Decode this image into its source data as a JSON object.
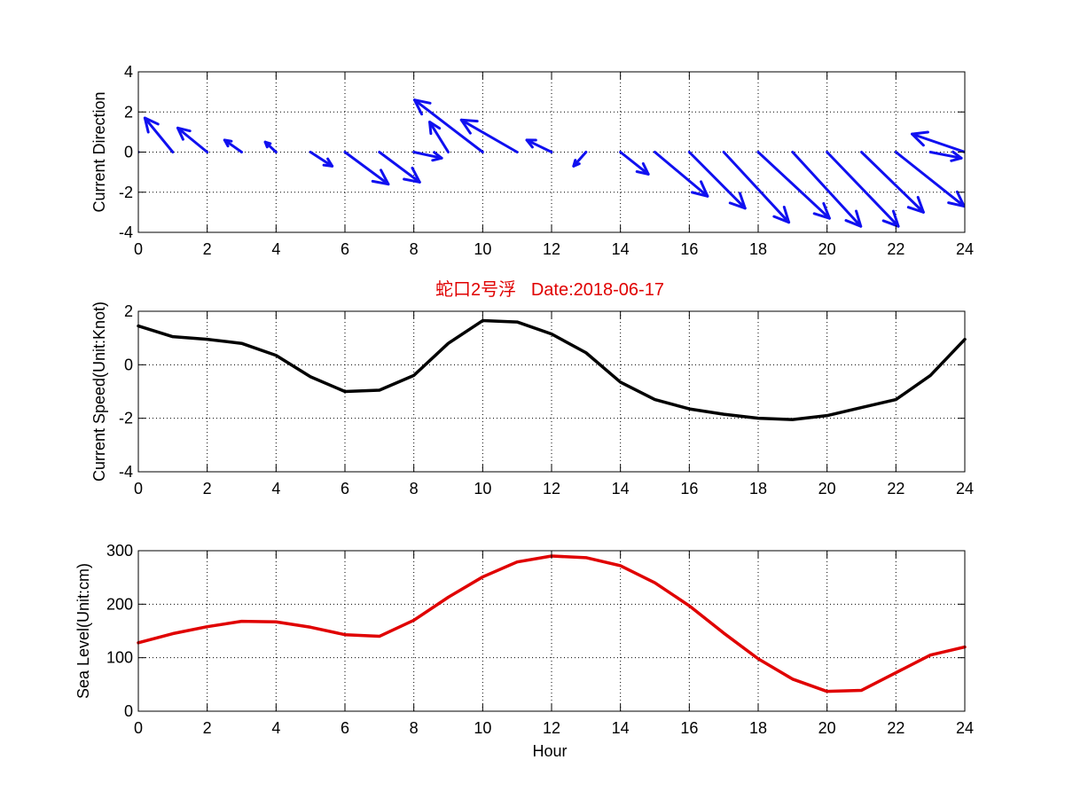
{
  "title": "蛇口2号浮   Date:2018-06-17",
  "colors": {
    "direction": "#1010f0",
    "speed": "#000000",
    "sea_level": "#e00000",
    "title": "#e00000",
    "grid": "#000000"
  },
  "chart_data": [
    {
      "type": "quiver",
      "ylabel": "Current Direction",
      "xlim": [
        0,
        24
      ],
      "ylim": [
        -4,
        4
      ],
      "xticks": [
        0,
        2,
        4,
        6,
        8,
        10,
        12,
        14,
        16,
        18,
        20,
        22,
        24
      ],
      "yticks": [
        -4,
        -2,
        0,
        2,
        4
      ],
      "grid": true,
      "x": [
        0,
        1,
        2,
        3,
        4,
        5,
        6,
        7,
        8,
        9,
        10,
        11,
        12,
        13,
        14,
        15,
        16,
        17,
        18,
        19,
        20,
        21,
        22,
        23,
        24
      ],
      "u": [
        -1.0,
        -0.9,
        -0.95,
        -0.55,
        -0.35,
        0.7,
        1.4,
        1.3,
        0.9,
        -0.6,
        -2.2,
        -1.8,
        -0.8,
        -0.4,
        0.9,
        1.7,
        1.8,
        2.1,
        2.3,
        2.2,
        2.3,
        2.0,
        2.2,
        1.0,
        -1.7
      ],
      "v": [
        0.8,
        1.7,
        1.2,
        0.6,
        0.5,
        -0.7,
        -1.6,
        -1.5,
        -0.3,
        1.5,
        2.6,
        1.6,
        0.6,
        -0.7,
        -1.1,
        -2.2,
        -2.8,
        -3.5,
        -3.3,
        -3.7,
        -3.7,
        -3.0,
        -2.7,
        -0.3,
        0.9
      ]
    },
    {
      "type": "line",
      "ylabel": "Current Speed(Unit:Knot)",
      "xlim": [
        0,
        24
      ],
      "ylim": [
        -4,
        2
      ],
      "xticks": [
        0,
        2,
        4,
        6,
        8,
        10,
        12,
        14,
        16,
        18,
        20,
        22,
        24
      ],
      "yticks": [
        -4,
        -2,
        0,
        2
      ],
      "grid": true,
      "x": [
        0,
        1,
        2,
        3,
        4,
        5,
        6,
        7,
        8,
        9,
        10,
        11,
        12,
        13,
        14,
        15,
        16,
        17,
        18,
        19,
        20,
        21,
        22,
        23,
        24
      ],
      "y": [
        1.45,
        1.05,
        0.95,
        0.8,
        0.35,
        -0.45,
        -1.0,
        -0.95,
        -0.4,
        0.8,
        1.65,
        1.6,
        1.15,
        0.45,
        -0.65,
        -1.3,
        -1.65,
        -1.85,
        -2.0,
        -2.05,
        -1.9,
        -1.6,
        -1.3,
        -0.4,
        0.95
      ]
    },
    {
      "type": "line",
      "ylabel": "Sea Level(Unit:cm)",
      "xlabel": "Hour",
      "xlim": [
        0,
        24
      ],
      "ylim": [
        0,
        300
      ],
      "xticks": [
        0,
        2,
        4,
        6,
        8,
        10,
        12,
        14,
        16,
        18,
        20,
        22,
        24
      ],
      "yticks": [
        0,
        100,
        200,
        300
      ],
      "grid": true,
      "x": [
        0,
        1,
        2,
        3,
        4,
        5,
        6,
        7,
        8,
        9,
        10,
        11,
        12,
        13,
        14,
        15,
        16,
        17,
        18,
        19,
        20,
        21,
        22,
        23,
        24
      ],
      "y": [
        128,
        145,
        158,
        168,
        167,
        157,
        143,
        140,
        170,
        213,
        251,
        279,
        290,
        287,
        272,
        240,
        197,
        146,
        98,
        60,
        37,
        39,
        72,
        105,
        120
      ]
    }
  ]
}
